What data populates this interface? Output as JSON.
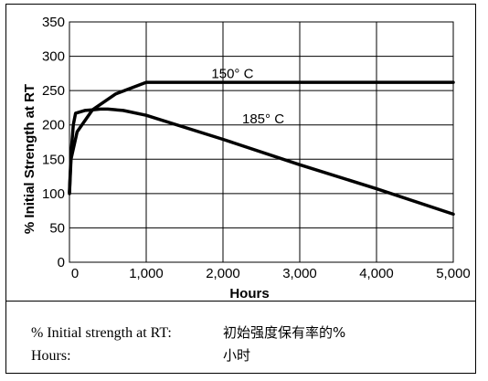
{
  "chart_data": {
    "type": "line",
    "title": "",
    "xlabel": "Hours",
    "ylabel": "% Initial Strength at RT",
    "xlim": [
      0,
      5000
    ],
    "ylim": [
      0,
      350
    ],
    "x_ticks": [
      0,
      1000,
      2000,
      3000,
      4000,
      5000
    ],
    "x_tick_labels": [
      "0",
      "1,000",
      "2,000",
      "3,000",
      "4,000",
      "5,000"
    ],
    "y_ticks": [
      0,
      50,
      100,
      150,
      200,
      250,
      300,
      350
    ],
    "y_tick_labels": [
      "0",
      "50",
      "100",
      "150",
      "200",
      "250",
      "300",
      "350"
    ],
    "grid": true,
    "series": [
      {
        "name": "150° C",
        "x": [
          0,
          20,
          100,
          300,
          600,
          1000,
          1500,
          2000,
          3000,
          4000,
          5000
        ],
        "y": [
          100,
          150,
          190,
          222,
          245,
          262,
          262,
          262,
          262,
          262,
          262
        ]
      },
      {
        "name": "185° C",
        "x": [
          0,
          20,
          50,
          80,
          200,
          300,
          400,
          500,
          700,
          1000,
          2000,
          3000,
          4000,
          5000
        ],
        "y": [
          102,
          157,
          200,
          217,
          221,
          222,
          223,
          223,
          221,
          214,
          179,
          142,
          107,
          70
        ]
      }
    ],
    "annotations": [
      {
        "text": "150° C",
        "series": "150° C",
        "x": 1850,
        "y": 268
      },
      {
        "text": "185° C",
        "series": "185° C",
        "x": 2250,
        "y": 202
      }
    ]
  },
  "legend": {
    "rows": [
      {
        "term": "% Initial strength at RT:",
        "translation": "初始强度保有率的%"
      },
      {
        "term": "Hours:",
        "translation": "小时"
      }
    ]
  },
  "colors": {
    "line": "#000000",
    "grid": "#000000",
    "background": "#ffffff"
  }
}
